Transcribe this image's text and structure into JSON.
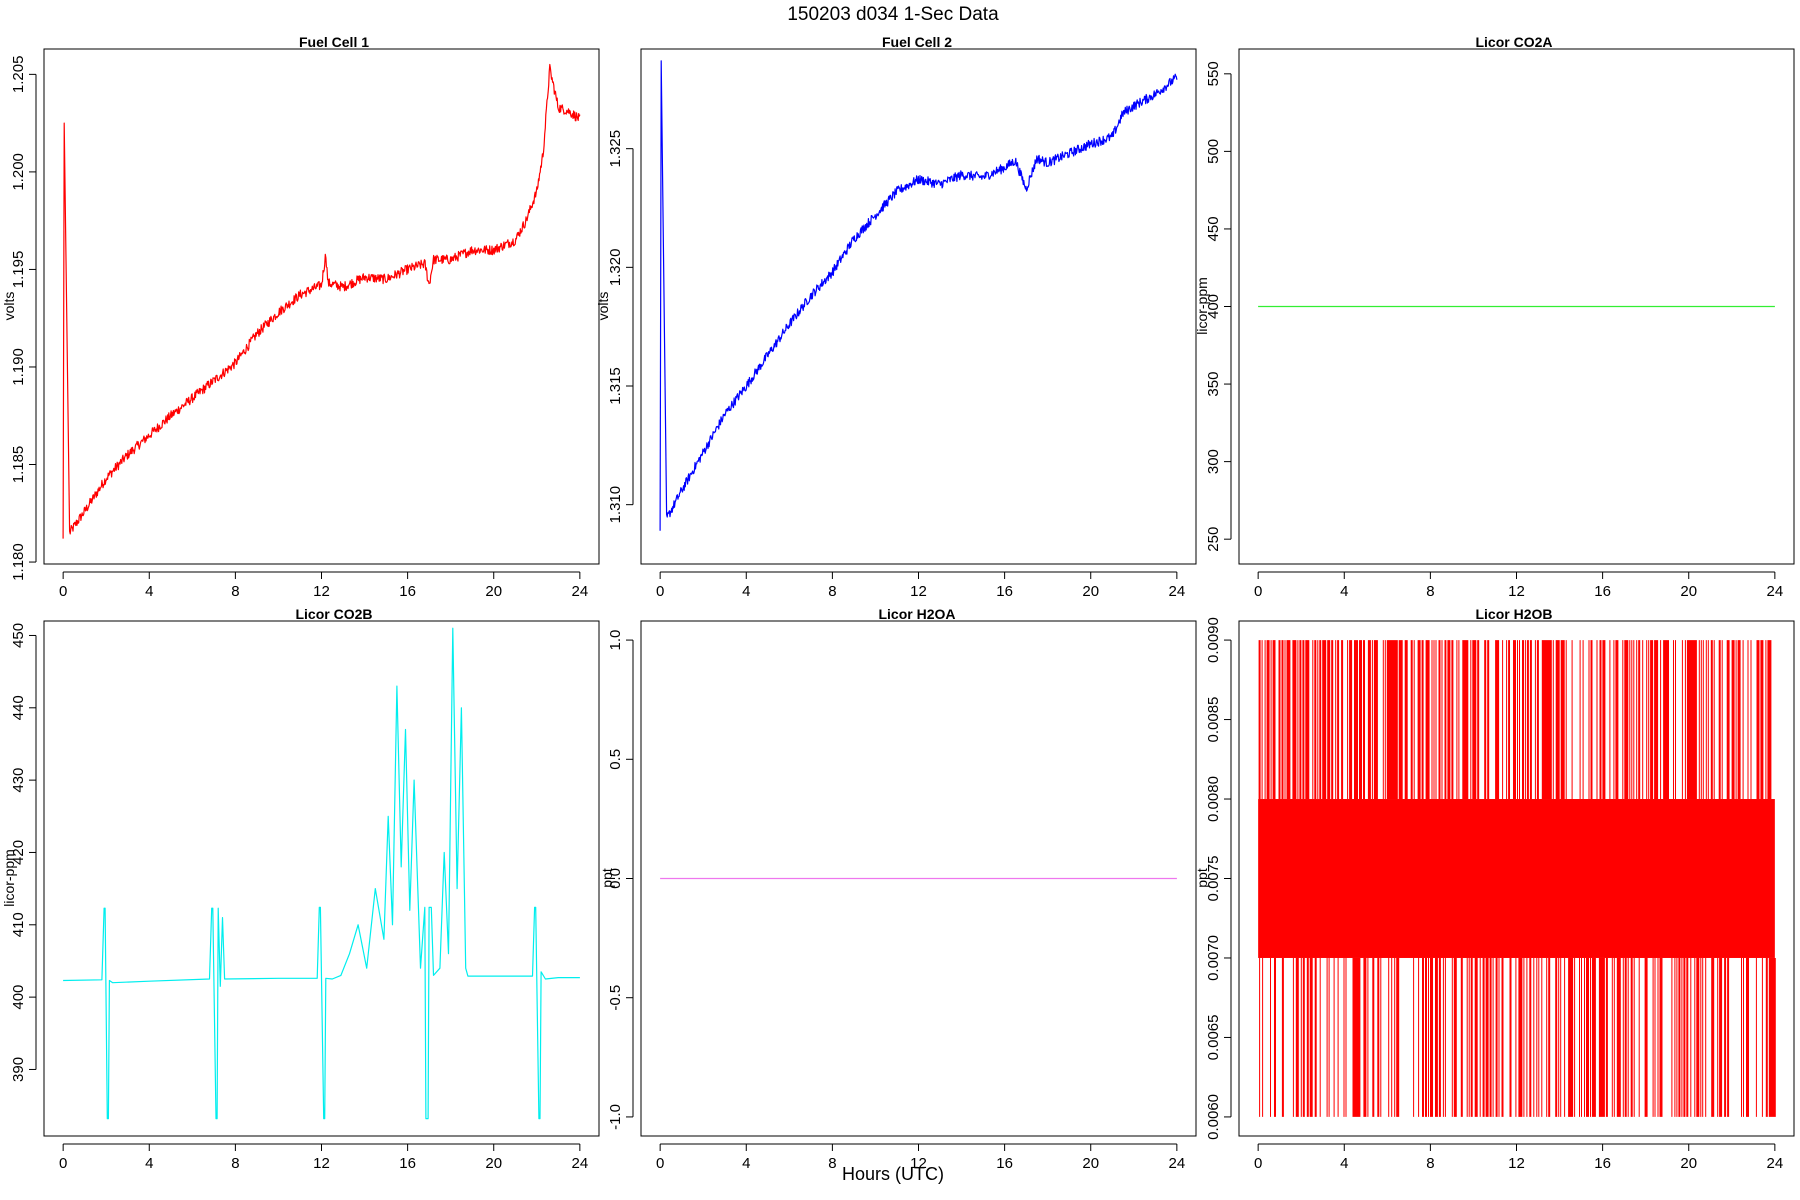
{
  "figure": {
    "title": "150203   d034   1-Sec Data",
    "xlabel": "Hours (UTC)"
  },
  "chart_data": [
    {
      "type": "line",
      "title": "Fuel Cell 1",
      "ylabel": "volts",
      "color": "#ff0000",
      "xlim": [
        0,
        24
      ],
      "ylim": [
        1.1799,
        1.2063
      ],
      "xticks": [
        "0",
        "4",
        "8",
        "12",
        "16",
        "20",
        "24"
      ],
      "yticks": [
        "1.180",
        "1.185",
        "1.190",
        "1.195",
        "1.200",
        "1.205"
      ],
      "x": [
        0,
        0.05,
        0.3,
        1,
        2,
        3,
        4,
        5,
        6,
        7,
        8,
        9,
        10,
        11,
        12,
        12.2,
        12.3,
        13,
        14,
        15,
        16,
        16.8,
        17,
        17.2,
        18,
        19,
        20,
        21,
        21.5,
        22,
        22.3,
        22.6,
        23,
        23.5,
        24
      ],
      "values": [
        1.1812,
        1.2025,
        1.1815,
        1.1826,
        1.1843,
        1.1855,
        1.1865,
        1.1875,
        1.1884,
        1.1893,
        1.1902,
        1.1917,
        1.1928,
        1.1937,
        1.1942,
        1.1958,
        1.1943,
        1.1941,
        1.1946,
        1.1945,
        1.195,
        1.1953,
        1.1942,
        1.1955,
        1.1955,
        1.196,
        1.196,
        1.1965,
        1.1975,
        1.199,
        1.201,
        1.2053,
        1.2033,
        1.2031,
        1.2027
      ],
      "noise": 0.00025
    },
    {
      "type": "line",
      "title": "Fuel Cell 2",
      "ylabel": "volts",
      "color": "#0000ff",
      "xlim": [
        0,
        24
      ],
      "ylim": [
        1.3075,
        1.3292
      ],
      "xticks": [
        "0",
        "4",
        "8",
        "12",
        "16",
        "20",
        "24"
      ],
      "yticks": [
        "1.310",
        "1.315",
        "1.320",
        "1.325"
      ],
      "x": [
        0,
        0.05,
        0.3,
        1,
        2,
        3,
        4,
        5,
        6,
        7,
        8,
        9,
        10,
        11,
        12,
        13,
        14,
        15,
        16,
        16.5,
        17,
        17.5,
        18,
        19,
        20,
        21,
        21.5,
        22,
        23,
        24
      ],
      "values": [
        1.3089,
        1.3287,
        1.3094,
        1.3106,
        1.3122,
        1.3138,
        1.315,
        1.3163,
        1.3176,
        1.3188,
        1.3198,
        1.3212,
        1.3222,
        1.3232,
        1.3237,
        1.3235,
        1.3239,
        1.3238,
        1.3242,
        1.3245,
        1.3233,
        1.3246,
        1.3244,
        1.3248,
        1.3252,
        1.3255,
        1.3265,
        1.3268,
        1.3273,
        1.328
      ],
      "noise": 0.0002
    },
    {
      "type": "line",
      "title": "Licor CO2A",
      "ylabel": "licor-ppm",
      "color": "#33ee33",
      "xlim": [
        0,
        24
      ],
      "ylim": [
        234,
        566
      ],
      "xticks": [
        "0",
        "4",
        "8",
        "12",
        "16",
        "20",
        "24"
      ],
      "yticks": [
        "250",
        "300",
        "350",
        "400",
        "450",
        "500",
        "550"
      ],
      "x": [
        0,
        24
      ],
      "values": [
        400,
        400
      ],
      "noise": 0
    },
    {
      "type": "line",
      "title": "Licor CO2B",
      "ylabel": "licor-ppm",
      "color": "#00eeee",
      "xlim": [
        0,
        24
      ],
      "ylim": [
        380.8,
        452
      ],
      "xticks": [
        "0",
        "4",
        "8",
        "12",
        "16",
        "20",
        "24"
      ],
      "yticks": [
        "390",
        "400",
        "410",
        "420",
        "430",
        "440",
        "450"
      ],
      "x": [
        0,
        1.8,
        1.9,
        1.95,
        2.05,
        2.1,
        2.15,
        2.3,
        4,
        6.8,
        6.9,
        6.95,
        7.1,
        7.15,
        7.2,
        7.3,
        7.4,
        7.5,
        10,
        11.8,
        11.9,
        11.95,
        12.1,
        12.15,
        12.2,
        12.5,
        12.9,
        13.3,
        13.7,
        14.1,
        14.5,
        14.9,
        15.1,
        15.3,
        15.5,
        15.7,
        15.9,
        16.1,
        16.3,
        16.6,
        16.8,
        16.85,
        16.95,
        17.0,
        17.1,
        17.2,
        17.5,
        17.7,
        17.9,
        18.1,
        18.3,
        18.5,
        18.7,
        18.8,
        19,
        21.8,
        21.9,
        21.95,
        22.1,
        22.15,
        22.2,
        22.4,
        23,
        24
      ],
      "values": [
        402.3,
        402.4,
        412.3,
        412.3,
        383.2,
        383.2,
        402.3,
        402,
        402.2,
        402.5,
        412.3,
        412.3,
        383.2,
        383.2,
        412.3,
        401.5,
        411,
        402.5,
        402.6,
        402.6,
        412.4,
        412.4,
        383.2,
        383.2,
        402.6,
        402.5,
        403,
        406,
        410,
        404,
        415,
        408,
        425,
        410,
        443,
        418,
        437,
        412,
        430,
        404,
        412.4,
        383.2,
        383.2,
        412.4,
        412.4,
        403,
        404,
        420,
        406,
        451,
        415,
        440,
        404,
        402.9,
        402.9,
        402.9,
        412.4,
        412.4,
        383.2,
        383.2,
        403.5,
        402.5,
        402.7,
        402.7
      ],
      "noise": 0
    },
    {
      "type": "line",
      "title": "Licor H2OA",
      "ylabel": "ppt",
      "color": "#ee77ee",
      "xlim": [
        0,
        24
      ],
      "ylim": [
        -1.08,
        1.08
      ],
      "xticks": [
        "0",
        "4",
        "8",
        "12",
        "16",
        "20",
        "24"
      ],
      "yticks": [
        "-1.0",
        "-0.5",
        "0.0",
        "0.5",
        "1.0"
      ],
      "x": [
        0,
        24
      ],
      "values": [
        0,
        0
      ],
      "noise": 0
    },
    {
      "type": "line",
      "title": "Licor H2OB",
      "ylabel": "ppt",
      "color": "#ff0000",
      "xlim": [
        0,
        24
      ],
      "ylim": [
        0.00588,
        0.00912
      ],
      "xticks": [
        "0",
        "4",
        "8",
        "12",
        "16",
        "20",
        "24"
      ],
      "yticks": [
        "0.0060",
        "0.0065",
        "0.0070",
        "0.0075",
        "0.0080",
        "0.0085",
        "0.0090"
      ],
      "x": [
        0,
        24
      ],
      "band": [
        0.007,
        0.008
      ],
      "spike_range": [
        0.006,
        0.009
      ],
      "values": [
        0.007,
        0.008
      ]
    }
  ]
}
